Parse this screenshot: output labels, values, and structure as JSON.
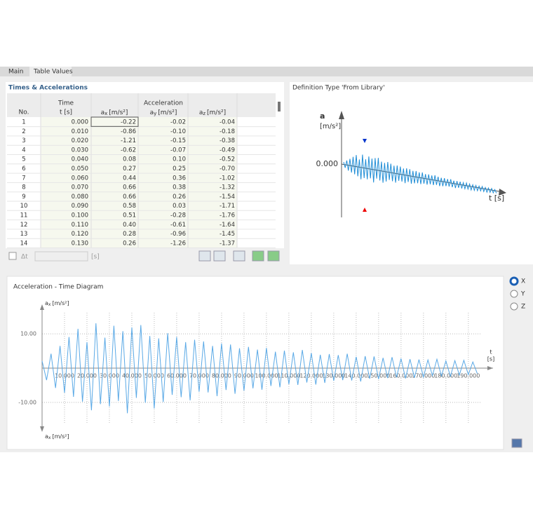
{
  "tabs": [
    "Main",
    "Table Values"
  ],
  "table": {
    "title": "Times & Accelerations",
    "group_headers": [
      "Time",
      "Acceleration"
    ],
    "columns": [
      {
        "label": "No."
      },
      {
        "label": "t [s]"
      },
      {
        "base": "a",
        "sub": "x",
        "unit": "[m/s²]"
      },
      {
        "base": "a",
        "sub": "y",
        "unit": "[m/s²]"
      },
      {
        "base": "a",
        "sub": "z",
        "unit": "[m/s²]"
      }
    ],
    "rows": [
      [
        "1",
        "0.000",
        "-0.22",
        "-0.02",
        "-0.04"
      ],
      [
        "2",
        "0.010",
        "-0.86",
        "-0.10",
        "-0.18"
      ],
      [
        "3",
        "0.020",
        "-1.21",
        "-0.15",
        "-0.38"
      ],
      [
        "4",
        "0.030",
        "-0.62",
        "-0.07",
        "-0.49"
      ],
      [
        "5",
        "0.040",
        "0.08",
        "0.10",
        "-0.52"
      ],
      [
        "6",
        "0.050",
        "0.27",
        "0.25",
        "-0.70"
      ],
      [
        "7",
        "0.060",
        "0.44",
        "0.36",
        "-1.02"
      ],
      [
        "8",
        "0.070",
        "0.66",
        "0.38",
        "-1.32"
      ],
      [
        "9",
        "0.080",
        "0.66",
        "0.26",
        "-1.54"
      ],
      [
        "10",
        "0.090",
        "0.58",
        "0.03",
        "-1.71"
      ],
      [
        "11",
        "0.100",
        "0.51",
        "-0.28",
        "-1.76"
      ],
      [
        "12",
        "0.110",
        "0.40",
        "-0.61",
        "-1.64"
      ],
      [
        "13",
        "0.120",
        "0.28",
        "-0.96",
        "-1.45"
      ],
      [
        "14",
        "0.130",
        "0.26",
        "-1.26",
        "-1.37"
      ]
    ]
  },
  "delta_t": {
    "label": "Δt",
    "unit": "[s]"
  },
  "definition": {
    "title": "Definition Type 'From Library'",
    "y_label": "a",
    "y_unit": "[m/s²]",
    "zero_label": "0.000",
    "x_label": "t [s]"
  },
  "chart_data": {
    "type": "line",
    "title": "Acceleration - Time Diagram",
    "x_label": "t",
    "x_unit": "[s]",
    "y_label": {
      "base": "a",
      "sub": "x",
      "unit": "[m/s²]"
    },
    "color": "#5aa9e6",
    "grid": true,
    "xlim": [
      0,
      196
    ],
    "ylim": [
      -17,
      17
    ],
    "xticks": [
      {
        "value": 10,
        "label": "10.000"
      },
      {
        "value": 20,
        "label": "20.000"
      },
      {
        "value": 30,
        "label": "30.000"
      },
      {
        "value": 40,
        "label": "40.000"
      },
      {
        "value": 50,
        "label": "50.000"
      },
      {
        "value": 60,
        "label": "60.000"
      },
      {
        "value": 70,
        "label": "70.000"
      },
      {
        "value": 80,
        "label": "80.000"
      },
      {
        "value": 90,
        "label": "90.000"
      },
      {
        "value": 100,
        "label": "100.000"
      },
      {
        "value": 110,
        "label": "110.000"
      },
      {
        "value": 120,
        "label": "120.000"
      },
      {
        "value": 130,
        "label": "130.000"
      },
      {
        "value": 140,
        "label": "140.000"
      },
      {
        "value": 150,
        "label": "150.000"
      },
      {
        "value": 160,
        "label": "160.000"
      },
      {
        "value": 170,
        "label": "170.000"
      },
      {
        "value": 180,
        "label": "180.000"
      },
      {
        "value": 190,
        "label": "190.000"
      }
    ],
    "yticks": [
      {
        "value": 10,
        "label": "10.00"
      },
      {
        "value": -10,
        "label": "-10.00"
      }
    ],
    "x": [
      0,
      2,
      4,
      6,
      8,
      10,
      12,
      14,
      16,
      18,
      20,
      22,
      24,
      26,
      28,
      30,
      32,
      34,
      36,
      38,
      40,
      42,
      44,
      46,
      48,
      50,
      52,
      54,
      56,
      58,
      60,
      62,
      64,
      66,
      68,
      70,
      72,
      74,
      76,
      78,
      80,
      82,
      84,
      86,
      88,
      90,
      92,
      94,
      96,
      98,
      100,
      102,
      104,
      106,
      108,
      110,
      112,
      114,
      116,
      118,
      120,
      122,
      124,
      126,
      128,
      130,
      132,
      134,
      136,
      138,
      140,
      142,
      144,
      146,
      148,
      150,
      152,
      154,
      156,
      158,
      160,
      162,
      164,
      166,
      168,
      170,
      172,
      174,
      176,
      178,
      180,
      182,
      184,
      186,
      188,
      190,
      192,
      194
    ],
    "values": [
      2.1,
      -3.5,
      4.2,
      -5.8,
      6.5,
      -7.2,
      9.1,
      -8.4,
      11.5,
      -9.8,
      7.6,
      -12.3,
      13.1,
      -10.5,
      8.9,
      -11.2,
      12.4,
      -9.6,
      10.8,
      -13.2,
      11.9,
      -8.7,
      12.6,
      -10.1,
      9.4,
      -11.8,
      8.7,
      -9.9,
      10.2,
      -7.8,
      9.1,
      -8.5,
      7.6,
      -9.4,
      8.3,
      -6.9,
      7.8,
      -7.1,
      6.5,
      -8.2,
      7.2,
      -6.4,
      6.9,
      -7.5,
      5.8,
      -6.6,
      6.2,
      -5.9,
      5.4,
      -6.3,
      5.9,
      -5.2,
      4.8,
      -5.6,
      5.1,
      -4.7,
      4.6,
      -4.9,
      5.3,
      -4.2,
      4.4,
      -4.8,
      3.9,
      -4.3,
      4.1,
      -3.7,
      3.8,
      -3.5,
      4.2,
      -3.6,
      3.3,
      -3.9,
      3.5,
      -3.1,
      3.4,
      -3.2,
      3.0,
      -2.9,
      3.2,
      -2.7,
      2.8,
      -3.0,
      2.6,
      -2.8,
      2.5,
      -2.6,
      2.4,
      -2.2,
      2.6,
      -2.3,
      2.1,
      -2.4,
      2.2,
      -2.0,
      2.3,
      -1.9,
      1.8,
      -1.6
    ]
  },
  "radio": {
    "options": [
      "X",
      "Y",
      "Z"
    ],
    "selected": 0
  }
}
